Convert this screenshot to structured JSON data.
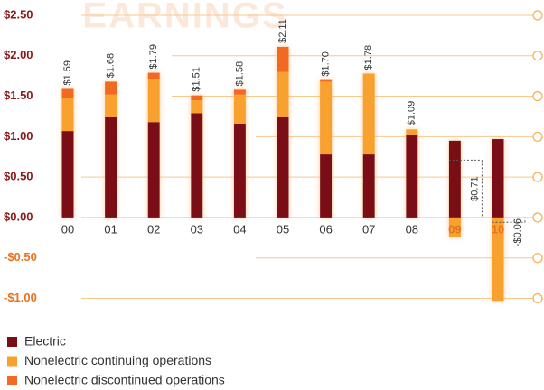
{
  "chart_data": {
    "type": "bar",
    "stacked": true,
    "title": "EARNINGS",
    "categories": [
      "00",
      "01",
      "02",
      "03",
      "04",
      "05",
      "06",
      "07",
      "08",
      "09",
      "10"
    ],
    "series": [
      {
        "name": "Electric",
        "color": "#7a1014",
        "values": [
          1.07,
          1.24,
          1.18,
          1.29,
          1.16,
          1.24,
          0.78,
          0.78,
          1.02,
          0.95,
          0.97
        ]
      },
      {
        "name": "Nonelectric continuing operations",
        "color": "#f9a12e",
        "values": [
          0.41,
          0.28,
          0.53,
          0.16,
          0.36,
          0.56,
          0.9,
          1.0,
          0.07,
          -0.24,
          -1.03
        ]
      },
      {
        "name": "Nonelectric discontinued operations",
        "color": "#f26a24",
        "values": [
          0.11,
          0.16,
          0.08,
          0.06,
          0.06,
          0.31,
          0.02,
          0,
          0,
          0,
          0
        ]
      }
    ],
    "totals": [
      1.59,
      1.68,
      1.79,
      1.51,
      1.58,
      2.11,
      1.7,
      1.78,
      1.09,
      0.71,
      -0.06
    ],
    "total_labels": [
      "$1.59",
      "$1.68",
      "$1.79",
      "$1.51",
      "$1.58",
      "$2.11",
      "$1.70",
      "$1.78",
      "$1.09",
      "$0.71",
      "-$0.06"
    ],
    "ylim": [
      -1.05,
      2.6
    ],
    "yticks": [
      {
        "value": -1,
        "label": "-$1.00"
      },
      {
        "value": -0.5,
        "label": "-$0.50"
      },
      {
        "value": 0,
        "label": "$0.00"
      },
      {
        "value": 0.5,
        "label": "$0.50"
      },
      {
        "value": 1,
        "label": "$1.00"
      },
      {
        "value": 1.5,
        "label": "$1.50"
      },
      {
        "value": 2,
        "label": "$2.00"
      },
      {
        "value": 2.5,
        "label": "$2.50"
      }
    ],
    "grid": true,
    "legend": "bottom-left"
  }
}
